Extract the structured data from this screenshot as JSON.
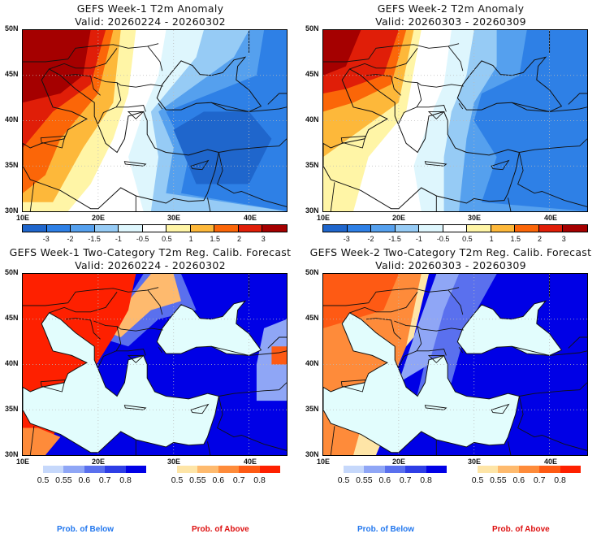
{
  "panels": {
    "top_left": {
      "title": "GEFS Week-1 T2m Anomaly",
      "valid": "Valid: 20260224 - 20260302",
      "kind": "anomaly",
      "field": "week1_anom"
    },
    "top_right": {
      "title": "GEFS Week-2 T2m Anomaly",
      "valid": "Valid: 20260303 - 20260309",
      "kind": "anomaly",
      "field": "week2_anom"
    },
    "bottom_left": {
      "title": "GEFS Week-1 Two-Category T2m Reg. Calib. Forecast",
      "valid": "Valid: 20260224 - 20260302",
      "kind": "probability",
      "field": "week1_prob"
    },
    "bottom_right": {
      "title": "GEFS Week-2 Two-Category T2m Reg. Calib. Forecast",
      "valid": "Valid: 20260303 - 20260309",
      "kind": "probability",
      "field": "week2_prob"
    }
  },
  "axes": {
    "lat_labels": [
      "50N",
      "45N",
      "40N",
      "35N",
      "30N"
    ],
    "lon_labels": [
      "10E",
      "20E",
      "30E",
      "40E"
    ],
    "lat_range": [
      30,
      50
    ],
    "lon_range": [
      10,
      45
    ]
  },
  "anomaly_colorbar": {
    "colors": [
      "#1f66cc",
      "#2e80e6",
      "#55a0ee",
      "#96cbf5",
      "#def6fd",
      "#ffffff",
      "#fff5a6",
      "#fdb83a",
      "#fb6608",
      "#e01e08",
      "#a50000"
    ],
    "labels": [
      "-3",
      "-2",
      "-1.5",
      "-1",
      "-0.5",
      "0.5",
      "1",
      "1.5",
      "2",
      "3"
    ]
  },
  "prob_below_colorbar": {
    "colors": [
      "#c6d8fb",
      "#8fa6f6",
      "#5a70ee",
      "#2e3ee6",
      "#0000e6"
    ],
    "labels": [
      "0.5",
      "0.55",
      "0.6",
      "0.7",
      "0.8"
    ]
  },
  "prob_above_colorbar": {
    "colors": [
      "#fee5a7",
      "#feba6e",
      "#fe8b3a",
      "#fe5a14",
      "#fe2000"
    ],
    "labels": [
      "0.5",
      "0.55",
      "0.6",
      "0.7",
      "0.8"
    ]
  },
  "legend": {
    "below_label": "Prob. of Below",
    "above_label": "Prob. of Above",
    "below_color": "#2277ee",
    "above_color": "#dd1111"
  },
  "map_colors": {
    "sea_prob": "#e2fdfd",
    "coast": "#111111"
  }
}
